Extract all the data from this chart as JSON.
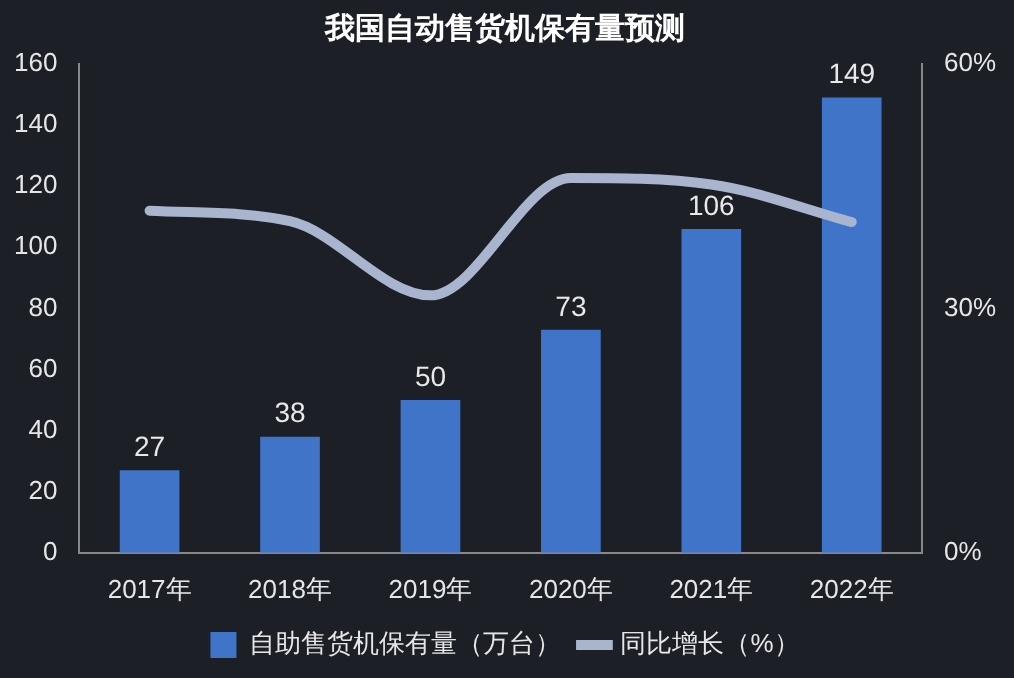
{
  "chart_data": {
    "type": "bar",
    "title": "我国自动售货机保有量预测",
    "categories": [
      "2017年",
      "2018年",
      "2019年",
      "2020年",
      "2021年",
      "2022年"
    ],
    "series": [
      {
        "name": "自助售货机保有量（万台）",
        "color": "#3f74c9",
        "values": [
          27,
          38,
          50,
          73,
          106,
          149
        ],
        "value_labels": [
          "27",
          "38",
          "50",
          "73",
          "106",
          "149"
        ]
      },
      {
        "name": "同比增长（%）",
        "type": "line",
        "axis": "y2",
        "color": "#a9b4cf",
        "values": [
          42,
          40.7,
          31.6,
          46,
          45.2,
          40.6
        ]
      }
    ],
    "ylim": [
      0,
      160
    ],
    "yticks": [
      0,
      20,
      40,
      60,
      80,
      100,
      120,
      140,
      160
    ],
    "y2lim": [
      0,
      60
    ],
    "y2ticks": [
      {
        "value": 0,
        "label": "0%"
      },
      {
        "value": 30,
        "label": "30%"
      },
      {
        "value": 60,
        "label": "60%"
      }
    ],
    "legend": "bottom",
    "marker": "none",
    "grid": false
  }
}
